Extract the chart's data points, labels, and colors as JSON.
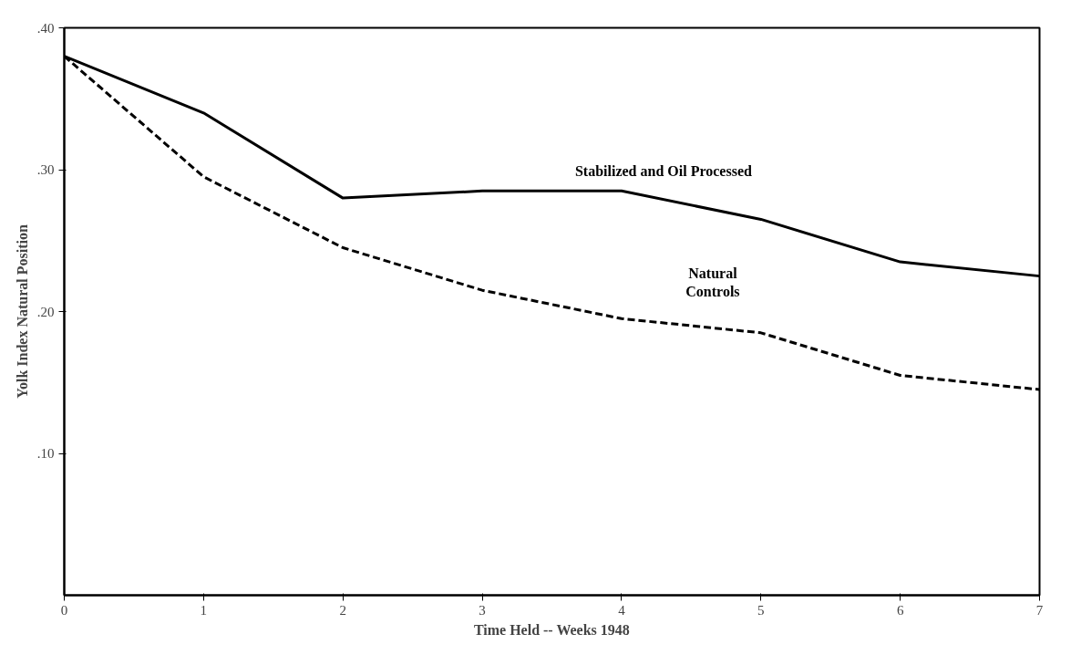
{
  "chart_data": {
    "type": "line",
    "xlabel": "Time Held -- Weeks 1948",
    "ylabel": "Yolk Index Natural Position",
    "x": [
      0,
      1,
      2,
      3,
      4,
      5,
      6,
      7
    ],
    "series": [
      {
        "name": "Stabilized and Oil Processed",
        "color": "#000000",
        "line_style": "solid",
        "values": [
          0.38,
          0.34,
          0.28,
          0.285,
          0.285,
          0.265,
          0.235,
          0.225
        ]
      },
      {
        "name": "Natural\nControls",
        "color": "#000000",
        "line_style": "dashed",
        "values": [
          0.38,
          0.295,
          0.245,
          0.215,
          0.195,
          0.185,
          0.155,
          0.145
        ]
      }
    ],
    "xlim": [
      0,
      7
    ],
    "ylim": [
      0,
      0.4
    ],
    "xticks": [
      0,
      1,
      2,
      3,
      4,
      5,
      6,
      7
    ],
    "yticks": [
      {
        "value": 0.1,
        "label": ".10"
      },
      {
        "value": 0.2,
        "label": ".20"
      },
      {
        "value": 0.3,
        "label": ".30"
      },
      {
        "value": 0.4,
        "label": ".40"
      }
    ],
    "grid": false,
    "marker": "none"
  }
}
